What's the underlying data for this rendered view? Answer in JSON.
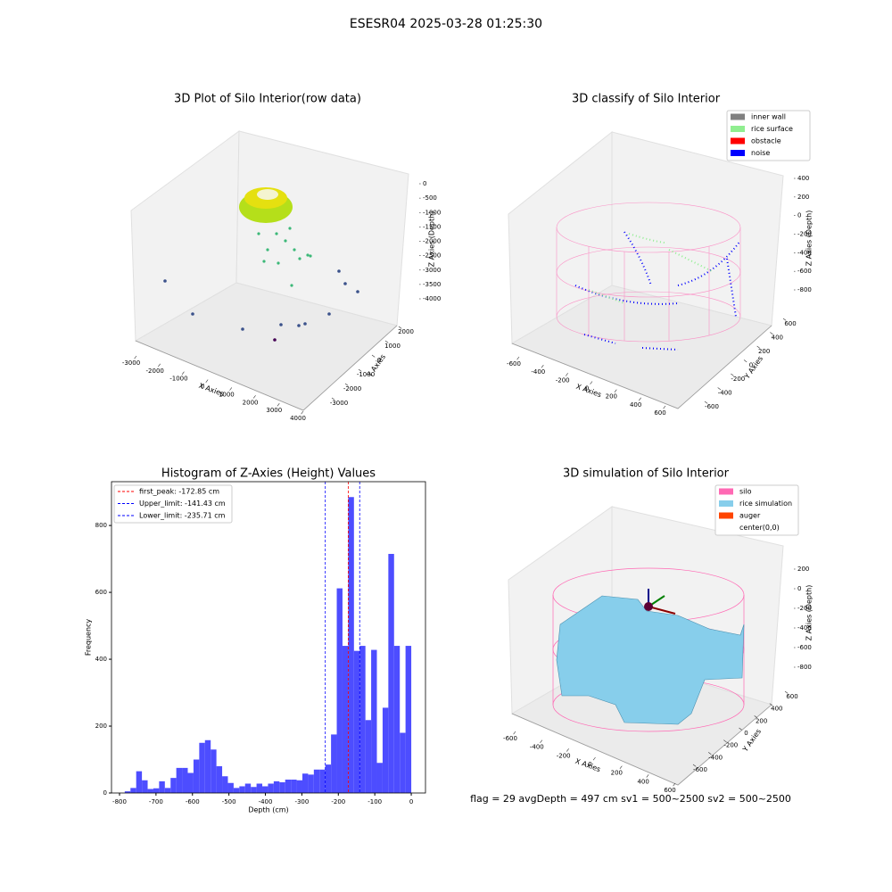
{
  "title": "ESESR04 2025-03-28 01:25:30",
  "footer": "flag = 29  avgDepth = 497 cm  sv1 = 500~2500  sv2 = 500~2500",
  "chart_data": [
    {
      "type": "scatter3d",
      "title": "3D Plot of Silo Interior(row data)",
      "xlabel": "X Axies",
      "ylabel": "Y Axies",
      "zlabel": "Z Axies (Depth)",
      "xlim": [
        -3000,
        4000
      ],
      "xticks": [
        -3000,
        -2000,
        -1000,
        0,
        1000,
        2000,
        3000,
        4000
      ],
      "ylim": [
        -3000,
        2000
      ],
      "yticks": [
        -3000,
        -2000,
        -1000,
        0,
        1000,
        2000
      ],
      "zlim": [
        -4000,
        0
      ],
      "zticks": [
        0,
        -500,
        -1000,
        -1500,
        -2000,
        -2500,
        -3000,
        -3500,
        -4000
      ]
    },
    {
      "type": "scatter3d",
      "title": "3D classify of Silo Interior",
      "xlabel": "X Axies",
      "ylabel": "Y Axies",
      "zlabel": "Z Axies (Depth)",
      "xlim": [
        -600,
        600
      ],
      "xticks": [
        -600,
        -400,
        -200,
        0,
        200,
        400,
        600
      ],
      "ylim": [
        -600,
        600
      ],
      "yticks": [
        -600,
        -400,
        -200,
        0,
        200,
        400,
        600
      ],
      "zlim": [
        -800,
        400
      ],
      "zticks": [
        400,
        200,
        0,
        -200,
        -400,
        -600,
        -800
      ],
      "legend": [
        {
          "name": "inner wall",
          "color": "#808080"
        },
        {
          "name": "rice surface",
          "color": "#90ee90"
        },
        {
          "name": "obstacle",
          "color": "#ff0000"
        },
        {
          "name": "noise",
          "color": "#0000ff"
        }
      ]
    },
    {
      "type": "histogram",
      "title": "Histogram of Z-Axies (Height) Values",
      "xlabel": "Depth (cm)",
      "ylabel": "Frequency",
      "color": "#4d4dff",
      "bins": [
        -785.71,
        -770.0,
        -754.29,
        -738.57,
        -722.86,
        -707.14,
        -691.43,
        -675.71,
        -660.0,
        -644.29,
        -628.57,
        -612.86,
        -597.14,
        -581.43,
        -565.71,
        -550.0,
        -534.29,
        -518.57,
        -502.86,
        -487.14,
        -471.43,
        -455.71,
        -440.0,
        -424.29,
        -408.57,
        -392.86,
        -377.14,
        -361.43,
        -345.71,
        -330.0,
        -314.29,
        -298.57,
        -282.86,
        -267.14,
        -251.43,
        -235.71,
        -220.0,
        -204.29,
        -188.57,
        -172.86,
        -157.14,
        -141.43,
        -125.71,
        -110.0,
        -94.29,
        -78.57,
        -62.86,
        -47.14,
        -31.43,
        -15.71,
        0
      ],
      "values": [
        5,
        15,
        65,
        38,
        12,
        14,
        35,
        15,
        45,
        75,
        75,
        60,
        100,
        150,
        158,
        130,
        80,
        50,
        30,
        15,
        20,
        28,
        18,
        28,
        20,
        28,
        35,
        32,
        40,
        40,
        38,
        58,
        55,
        70,
        70,
        85,
        175,
        612,
        440,
        885,
        425,
        440,
        218,
        428,
        90,
        255,
        715,
        440,
        180,
        440
      ],
      "xlim": [
        -822,
        39
      ],
      "xticks": [
        -800,
        -700,
        -600,
        -500,
        -400,
        -300,
        -200,
        -100,
        0
      ],
      "ylim": [
        0,
        931
      ],
      "yticks": [
        0,
        200,
        400,
        600,
        800
      ],
      "vlines": [
        {
          "name": "first_peak: -172.85 cm",
          "value": -172.85,
          "color": "#ff0000"
        },
        {
          "name": "Upper_limit: -141.43 cm",
          "value": -141.43,
          "color": "#0000ff"
        },
        {
          "name": "Lower_limit: -235.71 cm",
          "value": -235.71,
          "color": "#0000ff"
        }
      ]
    },
    {
      "type": "surface3d",
      "title": "3D simulation of Silo Interior",
      "xlabel": "X Axies",
      "ylabel": "Y Axies",
      "zlabel": "Z Axies (Depth)",
      "xlim": [
        -600,
        600
      ],
      "xticks": [
        -600,
        -400,
        -200,
        0,
        200,
        400,
        600
      ],
      "ylim": [
        -600,
        600
      ],
      "yticks": [
        -600,
        -400,
        -200,
        0,
        200,
        400,
        600
      ],
      "zlim": [
        -800,
        200
      ],
      "zticks": [
        200,
        0,
        -200,
        -400,
        -600,
        -800
      ],
      "legend": [
        {
          "name": "silo",
          "color": "#ff69b4"
        },
        {
          "name": "rice simulation",
          "color": "#87ceeb"
        },
        {
          "name": "auger",
          "color": "#ff4500"
        },
        {
          "name": "center(0,0)",
          "color": "#ffffff"
        }
      ]
    }
  ]
}
